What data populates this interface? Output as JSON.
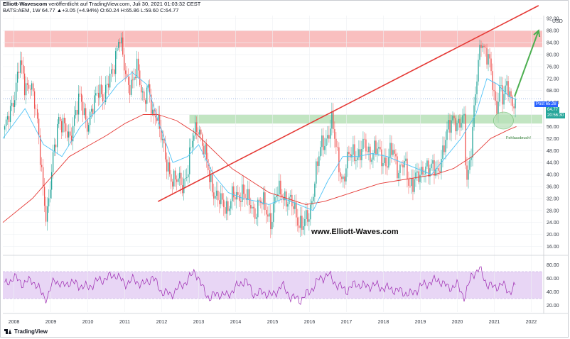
{
  "header": {
    "author": "Elliott-Wavescom",
    "published_text": "veröffentlicht auf TradingView.com, Juli 30, 2021 01:03:32 CEST",
    "symbol_line": "BATS:AEM, 1W 64.77 ▲+3.05 (+4.94%) O:60.24 H:65.86 L:59.60 C:64.77"
  },
  "watermark": "www.Elliott-Waves.com",
  "annotation": "Fehlausbruch!",
  "logo_text": "TradingView",
  "colors": {
    "candle_up": "#26a69a",
    "candle_down": "#ef5350",
    "ma_slow": "#e53935",
    "ma_fast": "#4fc3f7",
    "trendline": "#e53935",
    "projection_arrow": "#4caf50",
    "resistance_zone": "#f8b4b4",
    "support_zone": "#b7e1b7",
    "rsi_line": "#9c27b0",
    "rsi_band": "#e8d6f5"
  },
  "chart_data": [
    {
      "type": "candlestick",
      "symbol": "BATS:AEM",
      "interval": "1W",
      "currency": "USD",
      "x_ticks": [
        "2008",
        "2009",
        "2010",
        "2011",
        "2012",
        "2013",
        "2014",
        "2015",
        "2016",
        "2017",
        "2018",
        "2019",
        "2020",
        "2021",
        "2022"
      ],
      "y_ticks": [
        16,
        20,
        24,
        28,
        32,
        36,
        40,
        44,
        48,
        52,
        56,
        60,
        64,
        68,
        72,
        76,
        80,
        84,
        88,
        92
      ],
      "ylim": [
        14,
        93
      ],
      "xlim": [
        2007.7,
        2022.3
      ],
      "price_labels": [
        {
          "label": "Post",
          "value": "65.28"
        },
        {
          "label": "",
          "value": "64.77"
        },
        {
          "label": "",
          "value": "20:56:30"
        }
      ],
      "close_series": {
        "x": [
          2007.75,
          2007.9,
          2008.0,
          2008.15,
          2008.3,
          2008.45,
          2008.6,
          2008.75,
          2008.85,
          2008.92,
          2009.05,
          2009.2,
          2009.35,
          2009.5,
          2009.65,
          2009.8,
          2010.0,
          2010.15,
          2010.3,
          2010.45,
          2010.6,
          2010.75,
          2010.85,
          2010.95,
          2011.05,
          2011.2,
          2011.35,
          2011.5,
          2011.65,
          2011.75,
          2011.85,
          2011.95,
          2012.1,
          2012.25,
          2012.4,
          2012.55,
          2012.7,
          2012.85,
          2013.0,
          2013.15,
          2013.3,
          2013.45,
          2013.6,
          2013.75,
          2013.9,
          2014.05,
          2014.2,
          2014.35,
          2014.5,
          2014.65,
          2014.8,
          2014.95,
          2015.1,
          2015.25,
          2015.4,
          2015.55,
          2015.7,
          2015.85,
          2016.0,
          2016.15,
          2016.3,
          2016.45,
          2016.6,
          2016.75,
          2016.9,
          2017.05,
          2017.2,
          2017.35,
          2017.5,
          2017.65,
          2017.8,
          2017.95,
          2018.1,
          2018.25,
          2018.4,
          2018.55,
          2018.7,
          2018.85,
          2019.0,
          2019.15,
          2019.3,
          2019.45,
          2019.6,
          2019.75,
          2019.9,
          2020.05,
          2020.18,
          2020.25,
          2020.35,
          2020.45,
          2020.55,
          2020.65,
          2020.75,
          2020.85,
          2020.95,
          2021.05,
          2021.15,
          2021.25,
          2021.35,
          2021.45,
          2021.57
        ],
        "y": [
          55,
          60,
          66,
          78,
          68,
          72,
          60,
          42,
          28,
          27,
          44,
          60,
          55,
          52,
          60,
          65,
          57,
          62,
          70,
          65,
          72,
          80,
          86,
          78,
          72,
          70,
          75,
          66,
          68,
          58,
          62,
          56,
          44,
          40,
          38,
          36,
          42,
          52,
          57,
          48,
          38,
          34,
          30,
          29,
          33,
          31,
          36,
          30,
          27,
          32,
          28,
          25,
          33,
          34,
          32,
          29,
          25,
          23,
          26,
          40,
          48,
          52,
          58,
          46,
          38,
          45,
          48,
          46,
          50,
          47,
          48,
          46,
          44,
          48,
          42,
          44,
          36,
          40,
          38,
          44,
          42,
          40,
          48,
          54,
          60,
          56,
          58,
          38,
          46,
          60,
          74,
          86,
          82,
          78,
          70,
          62,
          70,
          64,
          70,
          66,
          64
        ]
      },
      "ma_slow_series": {
        "x": [
          2007.7,
          2008.5,
          2009.5,
          2010.5,
          2011.0,
          2011.5,
          2011.9,
          2012.4,
          2012.9,
          2013.4,
          2013.9,
          2014.4,
          2014.9,
          2015.4,
          2015.9,
          2016.4,
          2016.9,
          2017.4,
          2017.9,
          2018.4,
          2018.9,
          2019.4,
          2019.9,
          2020.4,
          2020.9,
          2021.4,
          2021.6
        ],
        "y": [
          24,
          32,
          46,
          53,
          57,
          60,
          60,
          58,
          54,
          48,
          42,
          38,
          34,
          32,
          30,
          31,
          33,
          35,
          37,
          38,
          39,
          40,
          42,
          46,
          52,
          55,
          56
        ]
      },
      "ma_fast_series": {
        "x": [
          2007.7,
          2008.3,
          2008.8,
          2009.3,
          2009.8,
          2010.3,
          2010.8,
          2011.2,
          2011.6,
          2011.9,
          2012.3,
          2012.7,
          2013.0,
          2013.4,
          2013.8,
          2014.2,
          2014.6,
          2014.9,
          2015.3,
          2015.7,
          2016.1,
          2016.5,
          2016.9,
          2017.3,
          2017.7,
          2018.1,
          2018.5,
          2018.9,
          2019.3,
          2019.7,
          2020.1,
          2020.5,
          2020.8,
          2021.1,
          2021.4,
          2021.6
        ],
        "y": [
          52,
          62,
          50,
          46,
          56,
          62,
          70,
          74,
          70,
          58,
          44,
          46,
          50,
          40,
          34,
          32,
          31,
          30,
          32,
          30,
          28,
          38,
          46,
          46,
          47,
          46,
          44,
          42,
          40,
          46,
          52,
          60,
          72,
          70,
          66,
          65
        ]
      },
      "trendline": {
        "x": [
          2011.9,
          2021.2
        ],
        "y": [
          31,
          90
        ]
      },
      "projection_arrow": {
        "x": [
          2021.55,
          2022.2
        ],
        "y": [
          66,
          88
        ]
      },
      "resistance_zone": {
        "x": [
          2007.75,
          2022.3
        ],
        "y": [
          82.5,
          88
        ]
      },
      "support_zone": {
        "x": [
          2012.75,
          2022.3
        ],
        "y": [
          57,
          60
        ]
      },
      "highlight_circle": {
        "x": 2021.25,
        "y": 58
      }
    },
    {
      "type": "line",
      "name": "RSI",
      "y_ticks": [
        20,
        40,
        60,
        80
      ],
      "ylim": [
        10,
        90
      ],
      "band": [
        30,
        70
      ],
      "series": [
        {
          "x": [
            2007.75,
            2008.0,
            2008.25,
            2008.5,
            2008.75,
            2008.9,
            2009.1,
            2009.3,
            2009.5,
            2009.75,
            2010.0,
            2010.25,
            2010.5,
            2010.75,
            2011.0,
            2011.25,
            2011.5,
            2011.75,
            2012.0,
            2012.25,
            2012.5,
            2012.75,
            2012.9,
            2013.1,
            2013.3,
            2013.5,
            2013.75,
            2014.0,
            2014.25,
            2014.5,
            2014.75,
            2015.0,
            2015.25,
            2015.5,
            2015.75,
            2016.0,
            2016.25,
            2016.5,
            2016.75,
            2017.0,
            2017.25,
            2017.5,
            2017.75,
            2018.0,
            2018.25,
            2018.5,
            2018.75,
            2019.0,
            2019.25,
            2019.5,
            2019.75,
            2020.0,
            2020.2,
            2020.4,
            2020.6,
            2020.8,
            2021.0,
            2021.2,
            2021.4,
            2021.57
          ],
          "y": [
            50,
            62,
            52,
            58,
            38,
            30,
            60,
            48,
            55,
            50,
            46,
            56,
            60,
            66,
            52,
            58,
            50,
            62,
            40,
            36,
            48,
            60,
            72,
            46,
            30,
            38,
            34,
            46,
            58,
            36,
            40,
            34,
            50,
            32,
            28,
            40,
            58,
            66,
            50,
            42,
            52,
            48,
            50,
            46,
            44,
            40,
            36,
            48,
            54,
            58,
            46,
            50,
            32,
            66,
            74,
            52,
            46,
            52,
            40,
            48
          ]
        }
      ]
    }
  ]
}
